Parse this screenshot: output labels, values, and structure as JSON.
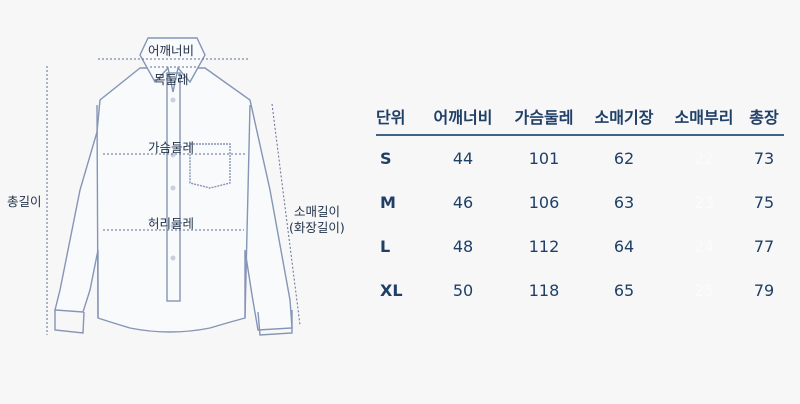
{
  "diagram": {
    "labels": {
      "shoulder": "어깨너비",
      "neck": "목둘레",
      "chest": "가슴둘레",
      "waist": "허리둘레",
      "total_length": "총길이",
      "sleeve_line1": "소매길이",
      "sleeve_line2": "(화장길이)"
    },
    "colors": {
      "outline": "#8595b5",
      "guide": "#5f6f95"
    }
  },
  "size_table": {
    "headers": [
      "단위",
      "어깨너비",
      "가슴둘레",
      "소매기장",
      "소매부리",
      "총장"
    ],
    "rows": [
      [
        "S",
        "44",
        "101",
        "62",
        "22",
        "73"
      ],
      [
        "M",
        "46",
        "106",
        "63",
        "23",
        "75"
      ],
      [
        "L",
        "48",
        "112",
        "64",
        "24",
        "77"
      ],
      [
        "XL",
        "50",
        "118",
        "65",
        "25",
        "79"
      ]
    ]
  }
}
